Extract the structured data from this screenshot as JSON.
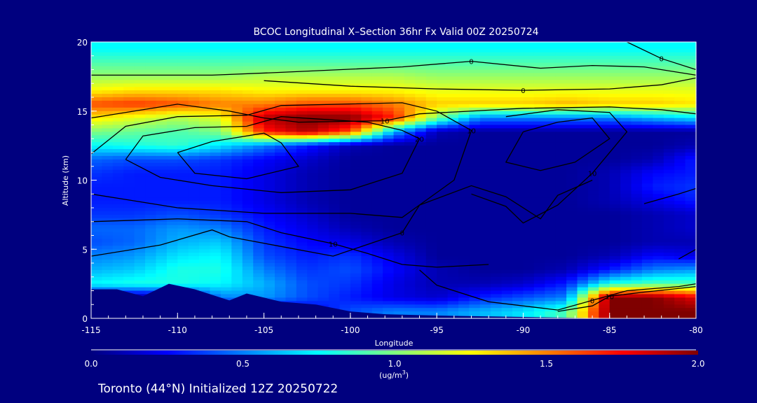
{
  "chart_data": {
    "type": "heatmap",
    "title": "BCOC Longitudinal X–Section 36hr  Fx Valid 00Z 20250724",
    "xlabel": "Longitude",
    "ylabel": "Altitude (km)",
    "xlim": [
      -115,
      -80
    ],
    "ylim": [
      0,
      20
    ],
    "xticks": [
      "-115",
      "-110",
      "-105",
      "-100",
      "-95",
      "-90",
      "-85",
      "-80"
    ],
    "yticks": [
      "0",
      "5",
      "10",
      "15",
      "20"
    ],
    "colorbar": {
      "range": [
        0.0,
        2.0
      ],
      "ticks": [
        "0.0",
        "0.5",
        "1.0",
        "1.5",
        "2.0"
      ],
      "unit_label": "(ug/m",
      "unit_sup": "3",
      "unit_close": ")"
    },
    "footer": "Toronto (44°N) Initialized 12Z 20250722",
    "grid_lon": [
      -115,
      -112.5,
      -110,
      -107.5,
      -105,
      -102.5,
      -100,
      -97.5,
      -95,
      -92.5,
      -90,
      -87.5,
      -85,
      -82.5,
      -80
    ],
    "grid_alt": [
      19.5,
      18.5,
      17.5,
      16.5,
      15.5,
      14.5,
      13.5,
      12.5,
      11.5,
      10.5,
      9.5,
      8.5,
      7.5,
      6.5,
      5.5,
      4.5,
      3.5,
      2.5,
      1.5,
      0.5
    ],
    "values": [
      [
        0.75,
        0.75,
        0.75,
        0.75,
        0.75,
        0.75,
        0.75,
        0.75,
        0.75,
        0.75,
        0.75,
        0.75,
        0.75,
        0.75,
        0.75
      ],
      [
        0.9,
        0.9,
        0.9,
        0.9,
        0.9,
        0.9,
        0.9,
        0.9,
        0.9,
        0.9,
        0.9,
        0.9,
        0.9,
        0.9,
        0.9
      ],
      [
        1.05,
        1.05,
        1.05,
        1.05,
        1.1,
        1.1,
        1.1,
        1.1,
        1.05,
        1.05,
        1.05,
        1.05,
        1.05,
        1.05,
        1.05
      ],
      [
        1.25,
        1.3,
        1.3,
        1.3,
        1.25,
        1.25,
        1.25,
        1.25,
        1.2,
        1.2,
        1.2,
        1.2,
        1.2,
        1.2,
        1.2
      ],
      [
        1.6,
        1.65,
        1.6,
        1.5,
        1.5,
        1.6,
        1.6,
        1.5,
        1.35,
        1.35,
        1.35,
        1.4,
        1.35,
        1.35,
        1.3
      ],
      [
        1.3,
        1.2,
        1.1,
        1.2,
        1.9,
        2.0,
        2.0,
        1.7,
        1.0,
        0.5,
        0.5,
        0.5,
        0.5,
        0.6,
        0.7
      ],
      [
        1.0,
        0.95,
        0.9,
        1.0,
        1.7,
        1.9,
        1.6,
        0.6,
        0.1,
        0.05,
        0.05,
        0.05,
        0.05,
        0.05,
        0.05
      ],
      [
        0.75,
        0.8,
        0.85,
        0.7,
        0.5,
        0.3,
        0.1,
        0.05,
        0.05,
        0.05,
        0.05,
        0.05,
        0.05,
        0.05,
        0.1
      ],
      [
        0.45,
        0.4,
        0.4,
        0.35,
        0.25,
        0.15,
        0.05,
        0.05,
        0.05,
        0.05,
        0.05,
        0.05,
        0.05,
        0.1,
        0.3
      ],
      [
        0.35,
        0.3,
        0.3,
        0.3,
        0.2,
        0.1,
        0.05,
        0.05,
        0.05,
        0.05,
        0.05,
        0.05,
        0.1,
        0.25,
        0.3
      ],
      [
        0.3,
        0.3,
        0.3,
        0.3,
        0.2,
        0.1,
        0.05,
        0.05,
        0.05,
        0.05,
        0.05,
        0.05,
        0.1,
        0.3,
        0.35
      ],
      [
        0.3,
        0.3,
        0.3,
        0.3,
        0.2,
        0.1,
        0.05,
        0.05,
        0.05,
        0.05,
        0.05,
        0.05,
        0.1,
        0.2,
        0.3
      ],
      [
        0.35,
        0.35,
        0.4,
        0.35,
        0.25,
        0.15,
        0.05,
        0.05,
        0.05,
        0.05,
        0.05,
        0.05,
        0.05,
        0.1,
        0.15
      ],
      [
        0.45,
        0.45,
        0.55,
        0.5,
        0.3,
        0.2,
        0.1,
        0.05,
        0.05,
        0.05,
        0.05,
        0.05,
        0.05,
        0.1,
        0.15
      ],
      [
        0.4,
        0.45,
        0.6,
        0.65,
        0.35,
        0.25,
        0.2,
        0.1,
        0.05,
        0.05,
        0.05,
        0.05,
        0.05,
        0.1,
        0.1
      ],
      [
        0.5,
        0.55,
        0.7,
        0.75,
        0.4,
        0.3,
        0.35,
        0.2,
        0.05,
        0.05,
        0.05,
        0.05,
        0.1,
        0.25,
        0.2
      ],
      [
        0.6,
        0.65,
        0.8,
        0.8,
        0.5,
        0.35,
        0.4,
        0.25,
        0.1,
        0.05,
        0.05,
        0.1,
        0.3,
        0.5,
        0.55
      ],
      [
        0.75,
        0.8,
        0.8,
        0.75,
        0.6,
        0.4,
        0.35,
        0.2,
        0.1,
        0.1,
        0.15,
        0.3,
        0.8,
        0.9,
        0.9
      ],
      [
        0.1,
        0.05,
        0.1,
        0.5,
        0.55,
        0.4,
        0.3,
        0.2,
        0.15,
        0.3,
        0.4,
        0.5,
        2.0,
        2.0,
        1.8
      ],
      [
        0.0,
        0.0,
        0.0,
        0.0,
        0.05,
        0.2,
        0.4,
        0.5,
        0.5,
        0.6,
        0.7,
        0.9,
        2.0,
        2.0,
        2.0
      ]
    ],
    "terrain": [
      [
        -115,
        0
      ],
      [
        -115,
        2.1
      ],
      [
        -113.5,
        2.1
      ],
      [
        -112,
        1.6
      ],
      [
        -110.5,
        2.5
      ],
      [
        -109,
        2.1
      ],
      [
        -107,
        1.3
      ],
      [
        -106,
        1.8
      ],
      [
        -104,
        1.2
      ],
      [
        -102,
        1.0
      ],
      [
        -100,
        0.5
      ],
      [
        -98,
        0.3
      ],
      [
        -95,
        0.2
      ],
      [
        -90,
        0.1
      ],
      [
        -85,
        0
      ],
      [
        -80,
        0
      ]
    ],
    "contours": [
      {
        "level": "0",
        "points": [
          [
            -115,
            17.6
          ],
          [
            -108,
            17.6
          ],
          [
            -104,
            17.8
          ],
          [
            -97,
            18.2
          ],
          [
            -93,
            18.6
          ],
          [
            -89,
            18.1
          ],
          [
            -86,
            18.3
          ],
          [
            -83,
            18.2
          ],
          [
            -80,
            17.6
          ]
        ]
      },
      {
        "level": "0",
        "points": [
          [
            -105,
            17.2
          ],
          [
            -100,
            16.8
          ],
          [
            -95,
            16.6
          ],
          [
            -90,
            16.5
          ],
          [
            -85,
            16.6
          ],
          [
            -82,
            16.9
          ],
          [
            -80,
            17.4
          ]
        ]
      },
      {
        "level": "0",
        "points": [
          [
            -84,
            20
          ],
          [
            -82,
            18.8
          ],
          [
            -80,
            18.0
          ]
        ]
      },
      {
        "level": "10",
        "points": [
          [
            -115,
            14.5
          ],
          [
            -110,
            15.5
          ],
          [
            -107,
            15.0
          ],
          [
            -105,
            14.5
          ],
          [
            -103,
            14.2
          ],
          [
            -98,
            14.3
          ],
          [
            -96,
            14.8
          ],
          [
            -90,
            15.2
          ],
          [
            -85,
            15.3
          ],
          [
            -82,
            15.1
          ],
          [
            -80,
            14.8
          ]
        ]
      },
      {
        "level": "20",
        "points": [
          [
            -113,
            11.5
          ],
          [
            -112,
            13.2
          ],
          [
            -109,
            13.8
          ],
          [
            -106,
            13.9
          ],
          [
            -104,
            14.6
          ],
          [
            -99,
            14.2
          ],
          [
            -97,
            13.6
          ],
          [
            -96,
            13.0
          ],
          [
            -97,
            10.5
          ],
          [
            -100,
            9.3
          ],
          [
            -104,
            9.1
          ],
          [
            -108,
            9.6
          ],
          [
            -111,
            10.2
          ],
          [
            -113,
            11.5
          ]
        ]
      },
      {
        "level": "",
        "points": [
          [
            -110,
            12.0
          ],
          [
            -108,
            12.8
          ],
          [
            -105,
            13.4
          ],
          [
            -104,
            12.7
          ],
          [
            -103,
            11.0
          ],
          [
            -106,
            10.1
          ],
          [
            -109,
            10.5
          ],
          [
            -110,
            12.0
          ]
        ]
      },
      {
        "level": "10",
        "points": [
          [
            -115,
            11.9
          ],
          [
            -114,
            12.9
          ],
          [
            -113,
            13.9
          ],
          [
            -110,
            14.6
          ],
          [
            -106,
            14.7
          ],
          [
            -104,
            15.4
          ],
          [
            -97,
            15.6
          ],
          [
            -95,
            15.0
          ],
          [
            -93,
            13.6
          ],
          [
            -94,
            10.0
          ],
          [
            -97,
            7.3
          ],
          [
            -100,
            7.6
          ],
          [
            -105,
            7.6
          ],
          [
            -110,
            8.0
          ],
          [
            -113,
            8.6
          ],
          [
            -115,
            9.0
          ]
        ]
      },
      {
        "level": "10",
        "points": [
          [
            -115,
            7.0
          ],
          [
            -110,
            7.2
          ],
          [
            -106,
            7.0
          ],
          [
            -104,
            6.2
          ],
          [
            -101,
            5.4
          ],
          [
            -99,
            4.7
          ],
          [
            -97,
            3.9
          ],
          [
            -95,
            3.7
          ],
          [
            -92,
            3.9
          ]
        ]
      },
      {
        "level": "0",
        "points": [
          [
            -115,
            4.5
          ],
          [
            -111,
            5.3
          ],
          [
            -108,
            6.4
          ],
          [
            -107,
            5.9
          ],
          [
            -104,
            5.2
          ],
          [
            -101,
            4.5
          ],
          [
            -97,
            6.2
          ],
          [
            -96,
            8.2
          ],
          [
            -93,
            9.6
          ],
          [
            -91,
            8.8
          ],
          [
            -89,
            7.2
          ],
          [
            -88,
            8.9
          ],
          [
            -86,
            10.0
          ]
        ]
      },
      {
        "level": "",
        "points": [
          [
            -90,
            13.5
          ],
          [
            -88,
            14.2
          ],
          [
            -86,
            14.5
          ],
          [
            -85,
            13.0
          ],
          [
            -87,
            11.3
          ],
          [
            -89,
            10.7
          ],
          [
            -91,
            11.3
          ],
          [
            -90,
            13.5
          ]
        ]
      },
      {
        "level": "10",
        "points": [
          [
            -91,
            14.6
          ],
          [
            -88,
            15.1
          ],
          [
            -85,
            14.9
          ],
          [
            -84,
            13.5
          ],
          [
            -86,
            10.5
          ],
          [
            -88,
            8.2
          ],
          [
            -90,
            6.9
          ],
          [
            -91,
            8.1
          ],
          [
            -93,
            9.0
          ]
        ]
      },
      {
        "level": "0",
        "points": [
          [
            -96,
            3.5
          ],
          [
            -95,
            2.4
          ],
          [
            -92,
            1.2
          ],
          [
            -88,
            0.6
          ],
          [
            -86,
            1.3
          ],
          [
            -84,
            2.0
          ],
          [
            -81,
            2.3
          ],
          [
            -80,
            2.5
          ]
        ]
      },
      {
        "level": "10",
        "points": [
          [
            -88,
            0.5
          ],
          [
            -86,
            0.9
          ],
          [
            -85,
            1.6
          ],
          [
            -83,
            1.9
          ],
          [
            -80,
            2.3
          ]
        ]
      },
      {
        "level": "",
        "points": [
          [
            -83,
            8.3
          ],
          [
            -81,
            9.0
          ],
          [
            -80,
            9.4
          ]
        ]
      },
      {
        "level": "",
        "points": [
          [
            -81,
            4.3
          ],
          [
            -80,
            5.0
          ]
        ]
      }
    ]
  }
}
